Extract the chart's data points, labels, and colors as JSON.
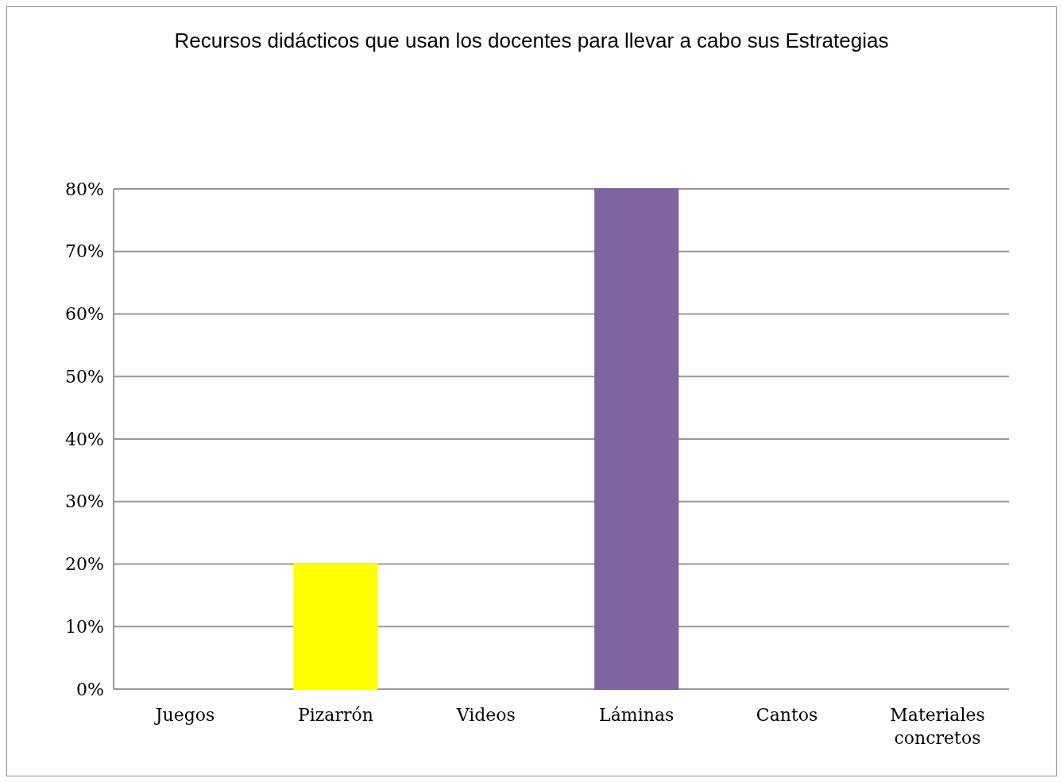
{
  "chart_data": {
    "type": "bar",
    "title": "Recursos didácticos que usan los docentes  para llevar a cabo sus Estrategias",
    "categories": [
      "Juegos",
      "Pizarrón",
      "Videos",
      "Láminas",
      "Cantos",
      "Materiales concretos"
    ],
    "values": [
      0,
      20,
      0,
      80,
      0,
      0
    ],
    "colors": [
      "#948a6e",
      "#ffff00",
      "#566e2c",
      "#8064a2",
      "#a8736e",
      "#3a6291"
    ],
    "ylim": [
      0,
      80
    ],
    "yticks": [
      {
        "value": 0,
        "label": "0%"
      },
      {
        "value": 10,
        "label": "10%"
      },
      {
        "value": 20,
        "label": "20%"
      },
      {
        "value": 30,
        "label": "30%"
      },
      {
        "value": 40,
        "label": "40%"
      },
      {
        "value": 50,
        "label": "50%"
      },
      {
        "value": 60,
        "label": "60%"
      },
      {
        "value": 70,
        "label": "70%"
      },
      {
        "value": 80,
        "label": "80%"
      }
    ],
    "grid": true
  }
}
